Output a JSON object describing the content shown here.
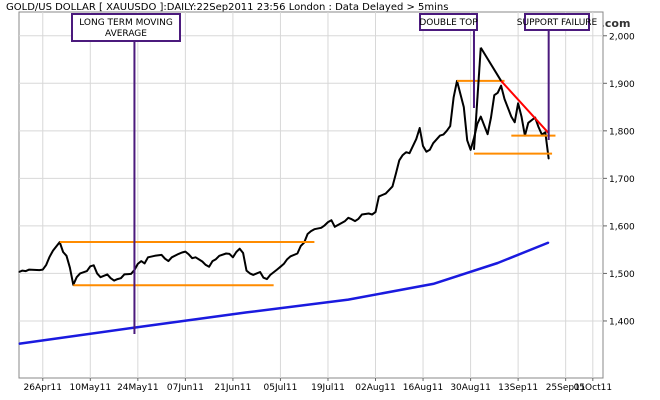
{
  "header": "GOLD/US DOLLAR [ XAUUSDO ]:DAILY:22Sep2011 23:56 London : Data Delayed > 5mins",
  "watermark": "www.incrediblecharts.com",
  "chart_data": {
    "type": "line",
    "x_start": "2011-04-19",
    "x_end": "2011-10-08",
    "ylim": [
      1280,
      2050
    ],
    "y_ticks": [
      1400,
      1500,
      1600,
      1700,
      1800,
      1900,
      2000
    ],
    "y_tick_labels": [
      "1,400",
      "1,500",
      "1,600",
      "1,700",
      "1,800",
      "1,900",
      "2,000"
    ],
    "x_tick_dates": [
      "2011-04-26",
      "2011-05-10",
      "2011-05-24",
      "2011-06-07",
      "2011-06-21",
      "2011-07-05",
      "2011-07-19",
      "2011-08-02",
      "2011-08-16",
      "2011-08-30",
      "2011-09-13",
      "2011-09-27",
      "2011-10-05"
    ],
    "x_tick_labels": [
      "26Apr11",
      "10May11",
      "24May11",
      "07Jun11",
      "21Jun11",
      "05Jul11",
      "19Jul11",
      "02Aug11",
      "16Aug11",
      "30Aug11",
      "13Sep11",
      "25Sep11",
      "05Oct11"
    ],
    "colors": {
      "price": "#000000",
      "moving_average": "#1a1adf",
      "support": "#ff8c00",
      "trendline": "#ff0000",
      "annotation": "#4b1a7d"
    },
    "series": [
      {
        "key": "price",
        "points": [
          [
            "2011-04-19",
            1503
          ],
          [
            "2011-04-20",
            1506
          ],
          [
            "2011-04-21",
            1505
          ],
          [
            "2011-04-22",
            1508
          ],
          [
            "2011-04-25",
            1507
          ],
          [
            "2011-04-26",
            1508
          ],
          [
            "2011-04-27",
            1518
          ],
          [
            "2011-04-28",
            1535
          ],
          [
            "2011-04-29",
            1548
          ],
          [
            "2011-05-01",
            1566
          ],
          [
            "2011-05-02",
            1545
          ],
          [
            "2011-05-03",
            1537
          ],
          [
            "2011-05-04",
            1512
          ],
          [
            "2011-05-05",
            1476
          ],
          [
            "2011-05-06",
            1492
          ],
          [
            "2011-05-07",
            1500
          ],
          [
            "2011-05-09",
            1505
          ],
          [
            "2011-05-10",
            1515
          ],
          [
            "2011-05-11",
            1517
          ],
          [
            "2011-05-12",
            1500
          ],
          [
            "2011-05-13",
            1492
          ],
          [
            "2011-05-15",
            1498
          ],
          [
            "2011-05-16",
            1490
          ],
          [
            "2011-05-17",
            1485
          ],
          [
            "2011-05-18",
            1488
          ],
          [
            "2011-05-19",
            1490
          ],
          [
            "2011-05-20",
            1498
          ],
          [
            "2011-05-22",
            1499
          ],
          [
            "2011-05-23",
            1507
          ],
          [
            "2011-05-24",
            1520
          ],
          [
            "2011-05-25",
            1526
          ],
          [
            "2011-05-26",
            1521
          ],
          [
            "2011-05-27",
            1534
          ],
          [
            "2011-05-29",
            1537
          ],
          [
            "2011-05-31",
            1539
          ],
          [
            "2011-06-01",
            1531
          ],
          [
            "2011-06-02",
            1526
          ],
          [
            "2011-06-03",
            1534
          ],
          [
            "2011-06-05",
            1541
          ],
          [
            "2011-06-06",
            1544
          ],
          [
            "2011-06-07",
            1546
          ],
          [
            "2011-06-08",
            1540
          ],
          [
            "2011-06-09",
            1532
          ],
          [
            "2011-06-10",
            1534
          ],
          [
            "2011-06-12",
            1525
          ],
          [
            "2011-06-13",
            1518
          ],
          [
            "2011-06-14",
            1514
          ],
          [
            "2011-06-15",
            1526
          ],
          [
            "2011-06-16",
            1530
          ],
          [
            "2011-06-17",
            1537
          ],
          [
            "2011-06-19",
            1542
          ],
          [
            "2011-06-20",
            1541
          ],
          [
            "2011-06-21",
            1534
          ],
          [
            "2011-06-22",
            1545
          ],
          [
            "2011-06-23",
            1552
          ],
          [
            "2011-06-24",
            1543
          ],
          [
            "2011-06-25",
            1506
          ],
          [
            "2011-06-26",
            1500
          ],
          [
            "2011-06-27",
            1497
          ],
          [
            "2011-06-28",
            1500
          ],
          [
            "2011-06-29",
            1503
          ],
          [
            "2011-06-30",
            1491
          ],
          [
            "2011-07-01",
            1488
          ],
          [
            "2011-07-02",
            1497
          ],
          [
            "2011-07-04",
            1508
          ],
          [
            "2011-07-05",
            1514
          ],
          [
            "2011-07-06",
            1520
          ],
          [
            "2011-07-07",
            1530
          ],
          [
            "2011-07-08",
            1536
          ],
          [
            "2011-07-10",
            1542
          ],
          [
            "2011-07-11",
            1558
          ],
          [
            "2011-07-12",
            1565
          ],
          [
            "2011-07-13",
            1583
          ],
          [
            "2011-07-14",
            1589
          ],
          [
            "2011-07-15",
            1593
          ],
          [
            "2011-07-17",
            1596
          ],
          [
            "2011-07-18",
            1601
          ],
          [
            "2011-07-19",
            1608
          ],
          [
            "2011-07-20",
            1612
          ],
          [
            "2011-07-21",
            1598
          ],
          [
            "2011-07-22",
            1602
          ],
          [
            "2011-07-24",
            1610
          ],
          [
            "2011-07-25",
            1617
          ],
          [
            "2011-07-26",
            1614
          ],
          [
            "2011-07-27",
            1610
          ],
          [
            "2011-07-28",
            1615
          ],
          [
            "2011-07-29",
            1624
          ],
          [
            "2011-07-31",
            1626
          ],
          [
            "2011-08-01",
            1624
          ],
          [
            "2011-08-02",
            1629
          ],
          [
            "2011-08-03",
            1662
          ],
          [
            "2011-08-04",
            1665
          ],
          [
            "2011-08-05",
            1668
          ],
          [
            "2011-08-07",
            1683
          ],
          [
            "2011-08-08",
            1710
          ],
          [
            "2011-08-09",
            1738
          ],
          [
            "2011-08-10",
            1749
          ],
          [
            "2011-08-11",
            1755
          ],
          [
            "2011-08-12",
            1753
          ],
          [
            "2011-08-14",
            1783
          ],
          [
            "2011-08-15",
            1806
          ],
          [
            "2011-08-16",
            1768
          ],
          [
            "2011-08-17",
            1756
          ],
          [
            "2011-08-18",
            1760
          ],
          [
            "2011-08-19",
            1774
          ],
          [
            "2011-08-21",
            1790
          ],
          [
            "2011-08-22",
            1792
          ],
          [
            "2011-08-23",
            1800
          ],
          [
            "2011-08-24",
            1810
          ],
          [
            "2011-08-25",
            1870
          ],
          [
            "2011-08-26",
            1905
          ],
          [
            "2011-08-28",
            1850
          ],
          [
            "2011-08-29",
            1780
          ],
          [
            "2011-08-30",
            1760
          ],
          [
            "2011-08-31",
            1785
          ],
          [
            "2011-09-01",
            1815
          ],
          [
            "2011-09-02",
            1830
          ],
          [
            "2011-09-04",
            1793
          ],
          [
            "2011-09-05",
            1828
          ],
          [
            "2011-09-06",
            1875
          ],
          [
            "2011-09-07",
            1880
          ],
          [
            "2011-09-08",
            1895
          ],
          [
            "2011-09-09",
            1867
          ],
          [
            "2011-09-11",
            1830
          ],
          [
            "2011-09-12",
            1818
          ],
          [
            "2011-09-13",
            1858
          ],
          [
            "2011-09-14",
            1830
          ],
          [
            "2011-09-15",
            1790
          ],
          [
            "2011-09-16",
            1817
          ],
          [
            "2011-09-18",
            1828
          ],
          [
            "2011-09-19",
            1808
          ],
          [
            "2011-09-20",
            1792
          ],
          [
            "2011-09-21",
            1797
          ],
          [
            "2011-09-22",
            1741
          ]
        ]
      },
      {
        "key": "moving_average",
        "points": [
          [
            "2011-04-19",
            1352
          ],
          [
            "2011-05-23",
            1386
          ],
          [
            "2011-06-25",
            1418
          ],
          [
            "2011-07-25",
            1445
          ],
          [
            "2011-08-19",
            1478
          ],
          [
            "2011-09-07",
            1522
          ],
          [
            "2011-09-22",
            1565
          ]
        ]
      }
    ],
    "levels": [
      {
        "key": "support",
        "y": 1566,
        "from": "2011-05-01",
        "to": "2011-07-15"
      },
      {
        "key": "support",
        "y": 1475,
        "from": "2011-05-05",
        "to": "2011-07-03"
      },
      {
        "key": "support",
        "y": 1905,
        "from": "2011-08-26",
        "to": "2011-09-09"
      },
      {
        "key": "support",
        "y": 1790,
        "from": "2011-09-11",
        "to": "2011-09-24"
      },
      {
        "key": "support",
        "y": 1752,
        "from": "2011-08-31",
        "to": "2011-09-23"
      }
    ],
    "double_top_lines": [
      {
        "from": [
          "2011-08-31",
          1760
        ],
        "to": [
          "2011-09-02",
          1975
        ]
      },
      {
        "from": [
          "2011-09-02",
          1975
        ],
        "to": [
          "2011-09-08",
          1905
        ]
      }
    ],
    "trendline": {
      "from": [
        "2011-09-08",
        1905
      ],
      "to": [
        "2011-09-22",
        1795
      ]
    },
    "annotations": [
      {
        "key": "lt-ma",
        "lines": [
          "LONG TERM MOVING",
          "AVERAGE"
        ],
        "pointer_date": "2011-05-23"
      },
      {
        "key": "double-top",
        "lines": [
          "DOUBLE TOP"
        ],
        "pointer_date": "2011-08-31"
      },
      {
        "key": "support-failure",
        "lines": [
          "SUPPORT FAILURE"
        ],
        "pointer_date": "2011-09-22"
      }
    ]
  }
}
